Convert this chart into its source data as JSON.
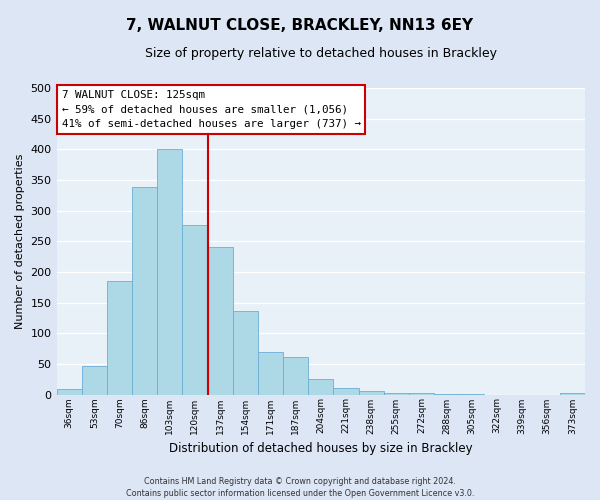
{
  "title": "7, WALNUT CLOSE, BRACKLEY, NN13 6EY",
  "subtitle": "Size of property relative to detached houses in Brackley",
  "xlabel": "Distribution of detached houses by size in Brackley",
  "ylabel": "Number of detached properties",
  "bin_labels": [
    "36sqm",
    "53sqm",
    "70sqm",
    "86sqm",
    "103sqm",
    "120sqm",
    "137sqm",
    "154sqm",
    "171sqm",
    "187sqm",
    "204sqm",
    "221sqm",
    "238sqm",
    "255sqm",
    "272sqm",
    "288sqm",
    "305sqm",
    "322sqm",
    "339sqm",
    "356sqm",
    "373sqm"
  ],
  "bar_heights": [
    9,
    46,
    185,
    338,
    400,
    277,
    240,
    137,
    70,
    62,
    26,
    10,
    5,
    3,
    2,
    1,
    1,
    0,
    0,
    0,
    3
  ],
  "bar_color": "#add8e6",
  "bar_edge_color": "#6baed6",
  "property_bin": 5,
  "vline_color": "#cc0000",
  "ylim": [
    0,
    500
  ],
  "annotation_line1": "7 WALNUT CLOSE: 125sqm",
  "annotation_line2": "← 59% of detached houses are smaller (1,056)",
  "annotation_line3": "41% of semi-detached houses are larger (737) →",
  "annotation_box_color": "#ffffff",
  "annotation_box_edge": "#cc0000",
  "footer_text": "Contains HM Land Registry data © Crown copyright and database right 2024.\nContains public sector information licensed under the Open Government Licence v3.0.",
  "bg_color": "#dce6f5",
  "plot_bg_color": "#e8f0f8",
  "grid_color": "#ffffff",
  "title_fontsize": 11,
  "subtitle_fontsize": 9,
  "ylabel_fontsize": 8,
  "xlabel_fontsize": 8.5
}
